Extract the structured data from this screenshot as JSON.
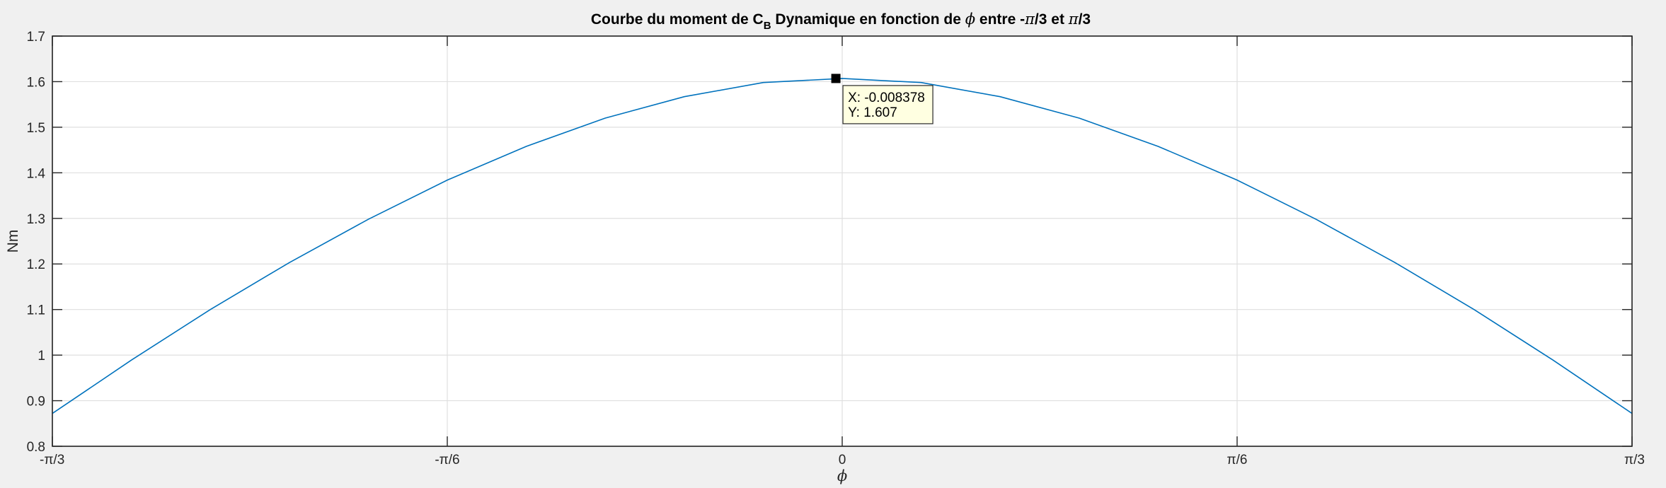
{
  "chart_data": {
    "type": "line",
    "title": {
      "prefix": "Courbe du moment de C",
      "subscript": "B",
      "middle": " Dynamique en fonction de ",
      "phi": "ϕ",
      "suffix_a": " entre -",
      "pi_a": "π",
      "suffix_b": "/3 et ",
      "pi_b": "π",
      "suffix_c": "/3"
    },
    "xlabel": "ϕ",
    "ylabel": "Nm",
    "xlim": [
      -1.0472,
      1.0472
    ],
    "ylim": [
      0.8,
      1.7
    ],
    "xticks": [
      {
        "value": -1.0472,
        "label": "-π/3"
      },
      {
        "value": -0.5236,
        "label": "-π/6"
      },
      {
        "value": 0,
        "label": "0"
      },
      {
        "value": 0.5236,
        "label": "π/6"
      },
      {
        "value": 1.0472,
        "label": "π/3"
      }
    ],
    "yticks": [
      "0.8",
      "0.9",
      "1",
      "1.1",
      "1.2",
      "1.3",
      "1.4",
      "1.5",
      "1.6",
      "1.7"
    ],
    "grid": true,
    "series": [
      {
        "color": "#0072bd",
        "x": [
          -1.0472,
          -0.9425,
          -0.8378,
          -0.733,
          -0.6283,
          -0.5236,
          -0.4189,
          -0.3142,
          -0.2094,
          -0.1047,
          0,
          0.1047,
          0.2094,
          0.3142,
          0.4189,
          0.5236,
          0.6283,
          0.733,
          0.8378,
          0.9425,
          1.0472
        ],
        "y": [
          0.872,
          0.989,
          1.1,
          1.203,
          1.298,
          1.384,
          1.458,
          1.52,
          1.567,
          1.598,
          1.607,
          1.598,
          1.567,
          1.52,
          1.458,
          1.384,
          1.298,
          1.203,
          1.1,
          0.989,
          0.872
        ]
      }
    ],
    "datatip": {
      "x": -0.008378,
      "y": 1.607,
      "x_text": "X: -0.008378",
      "y_text": "Y: 1.607"
    }
  }
}
